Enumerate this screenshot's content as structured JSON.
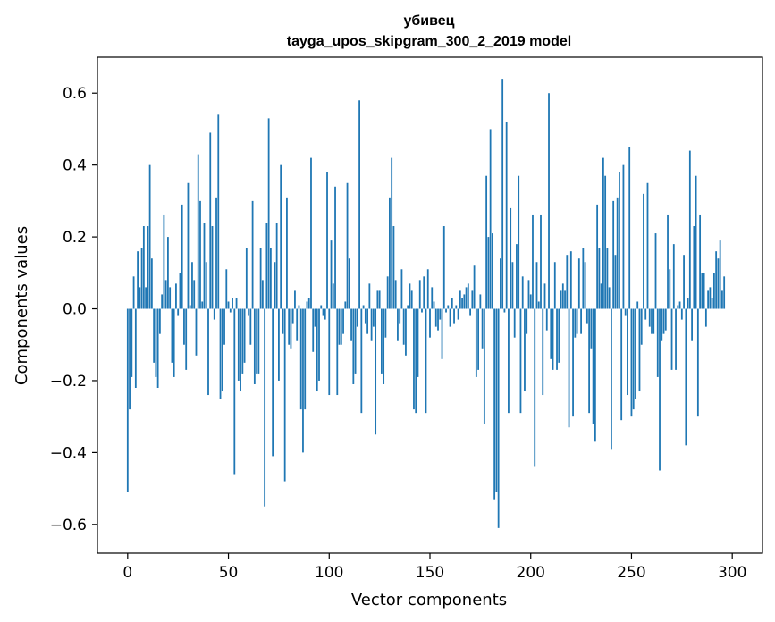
{
  "chart_data": {
    "type": "bar",
    "title_line1": "убивец",
    "title_line2": "tayga_upos_skipgram_300_2_2019 model",
    "xlabel": "Vector components",
    "ylabel": "Components values",
    "xlim": [
      -15,
      315
    ],
    "ylim": [
      -0.68,
      0.7
    ],
    "xticks": [
      {
        "value": 0,
        "label": "0"
      },
      {
        "value": 50,
        "label": "50"
      },
      {
        "value": 100,
        "label": "100"
      },
      {
        "value": 150,
        "label": "150"
      },
      {
        "value": 200,
        "label": "200"
      },
      {
        "value": 250,
        "label": "250"
      },
      {
        "value": 300,
        "label": "300"
      }
    ],
    "yticks": [
      {
        "value": -0.6,
        "label": "−0.6"
      },
      {
        "value": -0.4,
        "label": "−0.4"
      },
      {
        "value": -0.2,
        "label": "−0.2"
      },
      {
        "value": 0.0,
        "label": "0.0"
      },
      {
        "value": 0.2,
        "label": "0.2"
      },
      {
        "value": 0.4,
        "label": "0.4"
      },
      {
        "value": 0.6,
        "label": "0.6"
      }
    ],
    "bar_color": "#1f77b4",
    "values": [
      -0.51,
      -0.28,
      -0.19,
      0.09,
      -0.22,
      0.16,
      0.06,
      0.17,
      0.23,
      0.06,
      0.23,
      0.4,
      0.14,
      -0.15,
      -0.19,
      -0.22,
      -0.07,
      0.04,
      0.26,
      0.08,
      0.2,
      0.06,
      -0.15,
      -0.19,
      0.07,
      -0.02,
      0.1,
      0.29,
      -0.1,
      -0.17,
      0.35,
      0.01,
      0.13,
      0.08,
      -0.13,
      0.43,
      0.3,
      0.02,
      0.24,
      0.13,
      -0.24,
      0.49,
      0.23,
      -0.03,
      0.31,
      0.54,
      -0.25,
      -0.23,
      -0.1,
      0.11,
      0.02,
      -0.01,
      0.03,
      -0.46,
      0.03,
      -0.2,
      -0.23,
      -0.18,
      -0.15,
      0.17,
      -0.02,
      -0.1,
      0.3,
      -0.21,
      -0.18,
      -0.18,
      0.17,
      0.08,
      -0.55,
      0.24,
      0.53,
      0.17,
      -0.41,
      0.13,
      0.24,
      -0.2,
      0.4,
      -0.07,
      -0.48,
      0.31,
      -0.1,
      -0.11,
      -0.04,
      0.05,
      -0.09,
      0.01,
      -0.28,
      -0.4,
      -0.28,
      0.02,
      0.03,
      0.42,
      -0.12,
      -0.05,
      -0.23,
      -0.2,
      0.01,
      -0.02,
      -0.03,
      0.38,
      -0.24,
      0.19,
      0.07,
      0.34,
      -0.24,
      -0.1,
      -0.1,
      -0.07,
      0.02,
      0.35,
      0.14,
      -0.09,
      -0.21,
      -0.18,
      -0.05,
      0.58,
      -0.29,
      0.01,
      -0.04,
      -0.07,
      0.07,
      -0.09,
      -0.05,
      -0.35,
      0.05,
      0.05,
      -0.18,
      -0.21,
      -0.08,
      0.09,
      0.31,
      0.42,
      0.23,
      0.08,
      -0.09,
      -0.04,
      0.11,
      -0.1,
      -0.13,
      0.01,
      0.07,
      0.05,
      -0.28,
      -0.29,
      -0.19,
      0.08,
      -0.01,
      0.09,
      -0.29,
      0.11,
      -0.08,
      0.06,
      0.02,
      -0.05,
      -0.06,
      -0.03,
      -0.14,
      0.23,
      -0.01,
      0.01,
      -0.05,
      0.03,
      -0.04,
      0.01,
      -0.03,
      0.05,
      0.03,
      0.04,
      0.06,
      0.07,
      -0.02,
      0.05,
      0.12,
      -0.19,
      -0.17,
      0.04,
      -0.11,
      -0.32,
      0.37,
      0.2,
      0.5,
      0.21,
      -0.53,
      -0.51,
      -0.61,
      0.14,
      0.64,
      -0.01,
      0.52,
      -0.29,
      0.28,
      0.13,
      -0.08,
      0.18,
      0.37,
      -0.29,
      0.09,
      -0.23,
      -0.07,
      0.08,
      0.04,
      0.26,
      -0.44,
      0.13,
      0.02,
      0.26,
      -0.24,
      0.07,
      -0.06,
      0.6,
      -0.14,
      -0.17,
      0.13,
      -0.17,
      -0.15,
      0.05,
      0.07,
      0.05,
      0.15,
      -0.33,
      0.16,
      -0.3,
      -0.08,
      -0.07,
      0.14,
      -0.07,
      0.17,
      0.13,
      -0.04,
      -0.29,
      -0.11,
      -0.32,
      -0.37,
      0.29,
      0.17,
      0.07,
      0.42,
      0.37,
      0.17,
      0.06,
      -0.39,
      0.3,
      0.15,
      0.31,
      0.38,
      -0.31,
      0.4,
      -0.02,
      -0.24,
      0.45,
      -0.3,
      -0.28,
      -0.25,
      0.02,
      -0.23,
      -0.1,
      0.32,
      -0.03,
      0.35,
      -0.05,
      -0.07,
      -0.07,
      0.21,
      -0.19,
      -0.45,
      -0.09,
      -0.07,
      -0.06,
      0.26,
      0.11,
      -0.17,
      0.18,
      -0.17,
      0.01,
      0.02,
      -0.03,
      0.15,
      -0.38,
      0.03,
      0.44,
      -0.09,
      0.23,
      0.37,
      -0.3,
      0.26,
      0.1,
      0.1,
      -0.05,
      0.05,
      0.06,
      0.03,
      0.1,
      0.16,
      0.14,
      0.19,
      0.05,
      0.09
    ]
  }
}
